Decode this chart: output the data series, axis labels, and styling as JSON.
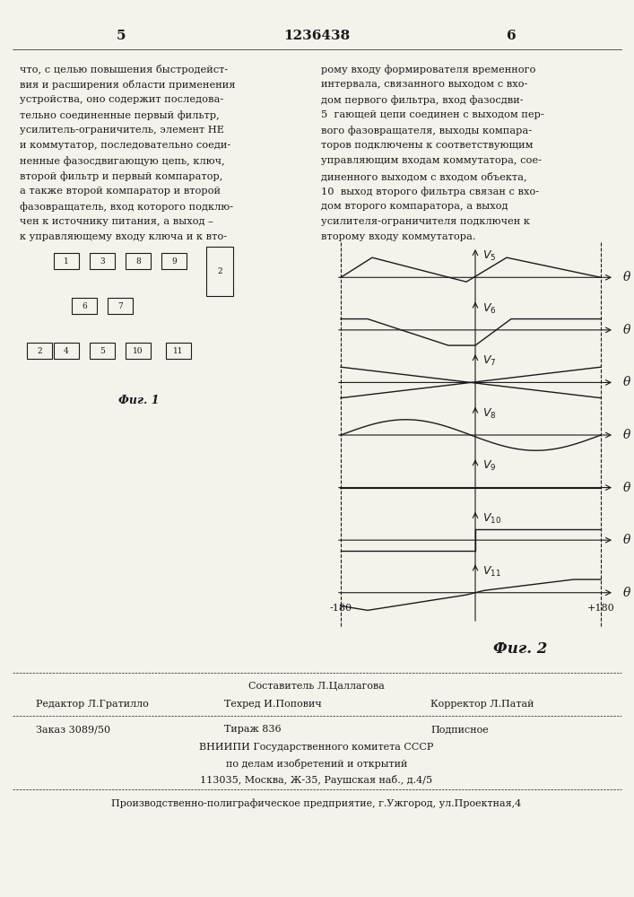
{
  "page_num_left": "5",
  "patent_num": "1236438",
  "page_num_right": "6",
  "bg_color": "#f5f2eb",
  "text_color": "#1a1a1a",
  "left_column_lines": [
    "что, с целью повышения быстродейст-",
    "вия и расширения области применения",
    "устройства, оно содержит последова-",
    "тельно соединенные первый фильтр,",
    "усилитель-ограничитель, элемент НЕ",
    "и коммутатор, последовательно соеди-",
    "ненные фазосдвигающую цепь, ключ,",
    "второй фильтр и первый компаратор,",
    "а также второй компаратор и второй",
    "фазовращатель, вход которого подклю-",
    "чен к источнику питания, а выход –",
    "к управляющему входу ключа и к вто-"
  ],
  "right_column_lines": [
    "рому входу формирователя временного",
    "интервала, связанного выходом с вхо-",
    "дом первого фильтра, вход фазосдви-",
    "5  гающей цепи соединен с выходом пер-",
    "вого фазовращателя, выходы компара-",
    "торов подключены к соответствующим",
    "управляющим входам коммутатора, сое-",
    "диненного выходом с входом объекта,",
    "10  выход второго фильтра связан с вхо-",
    "дом второго компаратора, а выход",
    "усилителя-ограничителя подключен к",
    "второму входу коммутатора."
  ],
  "fig1_label": "Фиг. 1",
  "fig2_label": "Фиг. 2",
  "waveform_labels": [
    "V5",
    "V6",
    "V7",
    "V8",
    "V9",
    "V10",
    "V11"
  ],
  "theta_label": "θ",
  "x_axis_min": -180,
  "x_axis_max": 180,
  "footer_lines": [
    "Составитель Л.Цаллагова",
    "Редактор Л.Гратилло    Техред И.Попович         Корректор Л.Патай",
    "Заказ 3089/50          Тираж 836                Подписное",
    "ВНИИПИ Государственного комитета СССР",
    "по делам изобретений и открытий",
    "113035, Москва, Ж-35, Раушская наб., д.4/5",
    "Производственно-полиграфическое предприятие, г.Ужгород, ул.Проектная,4"
  ]
}
